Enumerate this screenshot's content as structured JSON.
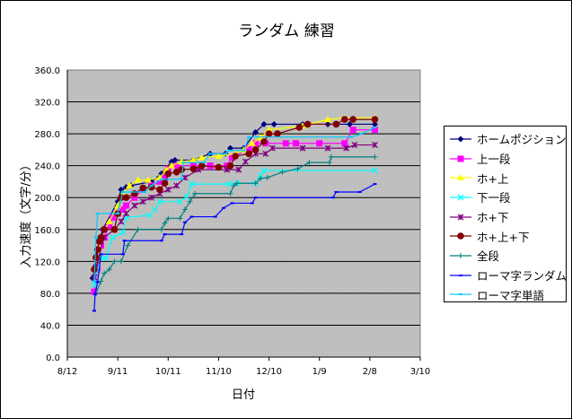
{
  "chart_data": {
    "type": "line",
    "title": "ランダム 練習",
    "xlabel": "日付",
    "ylabel": "入力速度（文字/分）",
    "ylim": [
      0,
      360
    ],
    "yticks": [
      "0.0",
      "40.0",
      "80.0",
      "120.0",
      "160.0",
      "200.0",
      "240.0",
      "280.0",
      "320.0",
      "360.0"
    ],
    "xlim_days_from_8_12": [
      0,
      210
    ],
    "xticks": [
      "8/12",
      "9/11",
      "10/11",
      "11/10",
      "12/10",
      "1/9",
      "2/8",
      "3/10"
    ],
    "grid": "horizontal",
    "legend_position": "right",
    "x_unit": "days since 8/12",
    "series": [
      {
        "name": "ホームポジション",
        "color": "#000080",
        "marker": "diamond",
        "points": [
          [
            15,
            99
          ],
          [
            17,
            115
          ],
          [
            18,
            130
          ],
          [
            19,
            145
          ],
          [
            21,
            160
          ],
          [
            30,
            195
          ],
          [
            32,
            210
          ],
          [
            35,
            213
          ],
          [
            38,
            215
          ],
          [
            50,
            220
          ],
          [
            56,
            230
          ],
          [
            62,
            245
          ],
          [
            64,
            247
          ],
          [
            75,
            247
          ],
          [
            85,
            255
          ],
          [
            94,
            255
          ],
          [
            97,
            262
          ],
          [
            105,
            262
          ],
          [
            112,
            282
          ],
          [
            117,
            292
          ],
          [
            123,
            292
          ],
          [
            140,
            292
          ],
          [
            155,
            292
          ],
          [
            168,
            292
          ],
          [
            183,
            292
          ]
        ]
      },
      {
        "name": "上一段",
        "color": "#ff00ff",
        "marker": "square",
        "points": [
          [
            16,
            82
          ],
          [
            18,
            110
          ],
          [
            20,
            140
          ],
          [
            22,
            150
          ],
          [
            25,
            165
          ],
          [
            27,
            175
          ],
          [
            30,
            180
          ],
          [
            33,
            185
          ],
          [
            35,
            190
          ],
          [
            40,
            200
          ],
          [
            45,
            210
          ],
          [
            50,
            215
          ],
          [
            55,
            220
          ],
          [
            58,
            225
          ],
          [
            60,
            236
          ],
          [
            65,
            240
          ],
          [
            75,
            240
          ],
          [
            85,
            240
          ],
          [
            95,
            240
          ],
          [
            98,
            250
          ],
          [
            108,
            262
          ],
          [
            112,
            268
          ],
          [
            118,
            268
          ],
          [
            130,
            268
          ],
          [
            136,
            268
          ],
          [
            150,
            268
          ],
          [
            165,
            268
          ],
          [
            170,
            285
          ],
          [
            183,
            285
          ]
        ]
      },
      {
        "name": "ホ+上",
        "color": "#ffff00",
        "marker": "triangle",
        "points": [
          [
            18,
            120
          ],
          [
            20,
            150
          ],
          [
            25,
            170
          ],
          [
            30,
            190
          ],
          [
            33,
            205
          ],
          [
            37,
            215
          ],
          [
            42,
            222
          ],
          [
            48,
            222
          ],
          [
            55,
            225
          ],
          [
            59,
            235
          ],
          [
            62,
            240
          ],
          [
            68,
            245
          ],
          [
            75,
            247
          ],
          [
            80,
            250
          ],
          [
            90,
            252
          ],
          [
            100,
            255
          ],
          [
            105,
            260
          ],
          [
            110,
            268
          ],
          [
            115,
            275
          ],
          [
            120,
            285
          ],
          [
            140,
            290
          ],
          [
            155,
            298
          ],
          [
            165,
            300
          ],
          [
            183,
            300
          ]
        ]
      },
      {
        "name": "下一段",
        "color": "#00ffff",
        "marker": "x",
        "points": [
          [
            16,
            90
          ],
          [
            18,
            110
          ],
          [
            20,
            124
          ],
          [
            23,
            124
          ],
          [
            27,
            150
          ],
          [
            33,
            156
          ],
          [
            35,
            175
          ],
          [
            49,
            178
          ],
          [
            52,
            185
          ],
          [
            55,
            195
          ],
          [
            67,
            195
          ],
          [
            71,
            201
          ],
          [
            74,
            217
          ],
          [
            96,
            217
          ],
          [
            101,
            218
          ],
          [
            112,
            218
          ],
          [
            115,
            228
          ],
          [
            117,
            234
          ],
          [
            183,
            234
          ]
        ]
      },
      {
        "name": "ホ+下",
        "color": "#800080",
        "marker": "star",
        "points": [
          [
            16,
            100
          ],
          [
            18,
            120
          ],
          [
            22,
            150
          ],
          [
            28,
            160
          ],
          [
            32,
            170
          ],
          [
            35,
            180
          ],
          [
            40,
            190
          ],
          [
            45,
            195
          ],
          [
            50,
            200
          ],
          [
            55,
            205
          ],
          [
            60,
            210
          ],
          [
            65,
            215
          ],
          [
            70,
            225
          ],
          [
            78,
            235
          ],
          [
            95,
            235
          ],
          [
            102,
            235
          ],
          [
            106,
            245
          ],
          [
            112,
            255
          ],
          [
            118,
            255
          ],
          [
            122,
            262
          ],
          [
            140,
            262
          ],
          [
            155,
            262
          ],
          [
            166,
            262
          ],
          [
            171,
            266
          ],
          [
            183,
            266
          ]
        ]
      },
      {
        "name": "ホ+上+下",
        "color": "#800000",
        "marker": "circle",
        "points": [
          [
            16,
            110
          ],
          [
            17,
            125
          ],
          [
            18,
            135
          ],
          [
            19,
            145
          ],
          [
            20,
            150
          ],
          [
            22,
            160
          ],
          [
            28,
            160
          ],
          [
            30,
            180
          ],
          [
            32,
            200
          ],
          [
            35,
            200
          ],
          [
            40,
            205
          ],
          [
            45,
            212
          ],
          [
            50,
            213
          ],
          [
            55,
            210
          ],
          [
            58,
            218
          ],
          [
            60,
            230
          ],
          [
            65,
            232
          ],
          [
            68,
            235
          ],
          [
            75,
            236
          ],
          [
            80,
            240
          ],
          [
            90,
            238
          ],
          [
            97,
            240
          ],
          [
            100,
            252
          ],
          [
            108,
            255
          ],
          [
            112,
            260
          ],
          [
            117,
            270
          ],
          [
            120,
            280
          ],
          [
            125,
            280
          ],
          [
            138,
            288
          ],
          [
            143,
            292
          ],
          [
            160,
            292
          ],
          [
            165,
            298
          ],
          [
            170,
            298
          ],
          [
            183,
            298
          ]
        ]
      },
      {
        "name": "全段",
        "color": "#008080",
        "marker": "plus",
        "points": [
          [
            17,
            80
          ],
          [
            20,
            95
          ],
          [
            22,
            105
          ],
          [
            25,
            110
          ],
          [
            28,
            120
          ],
          [
            32,
            120
          ],
          [
            36,
            140
          ],
          [
            42,
            160
          ],
          [
            56,
            160
          ],
          [
            58,
            168
          ],
          [
            60,
            174
          ],
          [
            67,
            174
          ],
          [
            70,
            185
          ],
          [
            73,
            195
          ],
          [
            76,
            205
          ],
          [
            97,
            205
          ],
          [
            99,
            215
          ],
          [
            101,
            218
          ],
          [
            112,
            218
          ],
          [
            115,
            224
          ],
          [
            119,
            225
          ],
          [
            128,
            232
          ],
          [
            137,
            236
          ],
          [
            144,
            244
          ],
          [
            156,
            244
          ],
          [
            157,
            251
          ],
          [
            183,
            251
          ]
        ]
      },
      {
        "name": "ローマ字ランダム",
        "color": "#0000ff",
        "marker": "dash",
        "points": [
          [
            16,
            58
          ],
          [
            16.5,
            79
          ],
          [
            18,
            94
          ],
          [
            20,
            129
          ],
          [
            33,
            129
          ],
          [
            34,
            146
          ],
          [
            56,
            146
          ],
          [
            58,
            154
          ],
          [
            68,
            154
          ],
          [
            70,
            169
          ],
          [
            74,
            176
          ],
          [
            88,
            176
          ],
          [
            93,
            187
          ],
          [
            98,
            193
          ],
          [
            110,
            193
          ],
          [
            112,
            200
          ],
          [
            158,
            200
          ],
          [
            160,
            207
          ],
          [
            174,
            207
          ],
          [
            183,
            217
          ]
        ]
      },
      {
        "name": "ローマ字単語",
        "color": "#00ccff",
        "marker": "dash",
        "points": [
          [
            16,
            95
          ],
          [
            17,
            150
          ],
          [
            18,
            180
          ],
          [
            30,
            180
          ],
          [
            33,
            207
          ],
          [
            46,
            207
          ],
          [
            50,
            215
          ],
          [
            56,
            223
          ],
          [
            68,
            223
          ],
          [
            69,
            244
          ],
          [
            81,
            244
          ],
          [
            85,
            255
          ],
          [
            94,
            255
          ],
          [
            96,
            259
          ],
          [
            105,
            259
          ],
          [
            108,
            276
          ],
          [
            169,
            276
          ],
          [
            175,
            280
          ],
          [
            183,
            288
          ]
        ]
      }
    ]
  }
}
